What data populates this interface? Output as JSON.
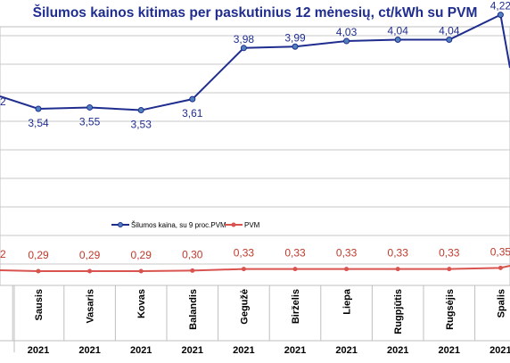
{
  "chart_data": {
    "type": "line",
    "title": "Šilumos kainos kitimas per paskutinius 12 mėnesių, ct/kWh su PVM",
    "categories": [
      "Sausis",
      "Vasaris",
      "Kovas",
      "Balandis",
      "Gegužė",
      "Birželis",
      "Liepa",
      "Rugpjūtis",
      "Rugsėjis",
      "Spalis"
    ],
    "category_year": "2021",
    "series": [
      {
        "name": "Šilumos kaina, su 9 proc.PVM",
        "color": "#1f2d8f",
        "values": [
          3.54,
          3.55,
          3.53,
          3.61,
          3.98,
          3.99,
          4.03,
          4.04,
          4.04,
          4.22
        ],
        "labels": [
          "3,54",
          "3,55",
          "3,53",
          "3,61",
          "3,98",
          "3,99",
          "4,03",
          "4,04",
          "4,04",
          "4,22"
        ]
      },
      {
        "name": "PVM",
        "color": "#d9534f",
        "values": [
          0.29,
          0.29,
          0.29,
          0.3,
          0.33,
          0.33,
          0.33,
          0.33,
          0.33,
          0.35
        ],
        "labels": [
          "0,29",
          "0,29",
          "0,29",
          "0,30",
          "0,33",
          "0,33",
          "0,33",
          "0,33",
          "0,33",
          "0,35"
        ]
      }
    ],
    "partial_labels": {
      "left_blue": "2",
      "left_red": "2"
    },
    "ylim": [
      0,
      4.8
    ],
    "grid": true,
    "legend_position": "middle"
  }
}
